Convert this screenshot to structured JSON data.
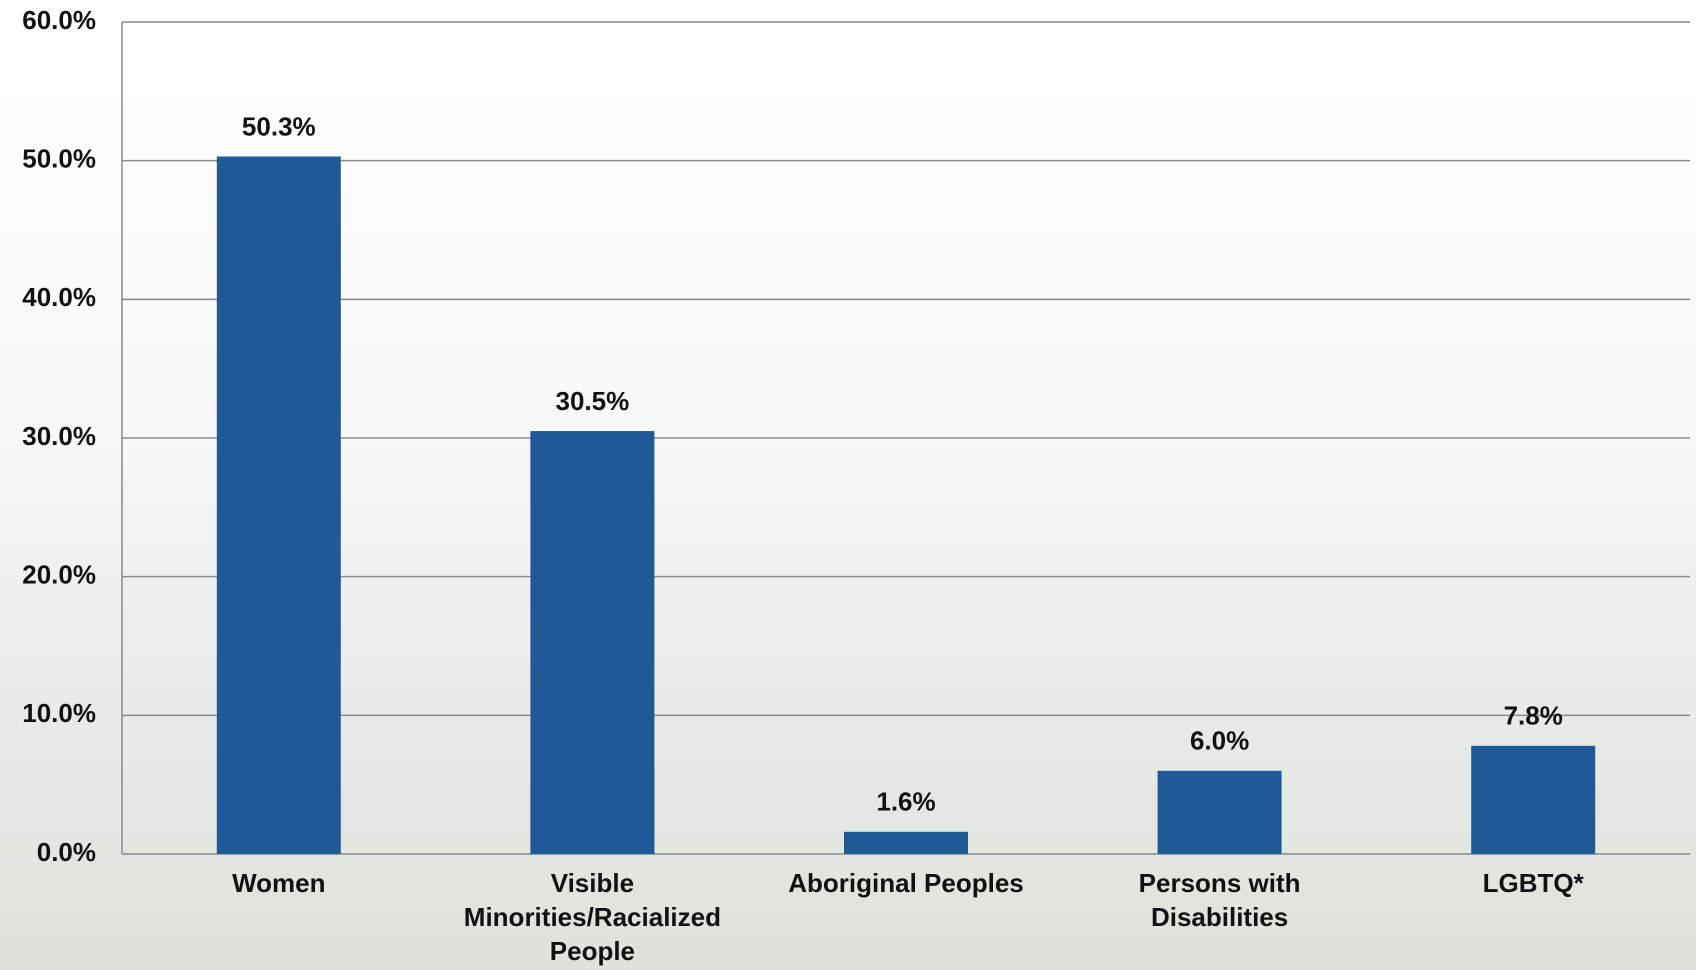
{
  "chart_data": {
    "type": "bar",
    "categories": [
      "Women",
      "Visible Minorities/Racialized People",
      "Aboriginal Peoples",
      "Persons with Disabilities",
      "LGBTQ*"
    ],
    "values": [
      50.3,
      30.5,
      1.6,
      6.0,
      7.8
    ],
    "value_labels": [
      "50.3%",
      "30.5%",
      "1.6%",
      "6.0%",
      "7.8%"
    ],
    "color": "#1f5a96",
    "ylim": [
      0,
      60
    ],
    "yticks": [
      {
        "value": 0,
        "label": "0.0%"
      },
      {
        "value": 10,
        "label": "10.0%"
      },
      {
        "value": 20,
        "label": "20.0%"
      },
      {
        "value": 30,
        "label": "30.0%"
      },
      {
        "value": 40,
        "label": "40.0%"
      },
      {
        "value": 50,
        "label": "50.0%"
      },
      {
        "value": 60,
        "label": "60.0%"
      }
    ],
    "grid": true
  }
}
